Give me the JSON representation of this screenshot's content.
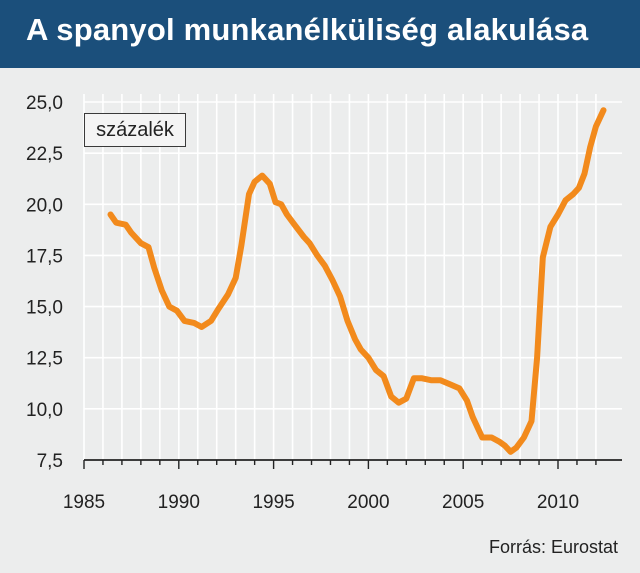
{
  "header": {
    "title": "A spanyol munkanélküliség alakulása"
  },
  "unit_label": "százalék",
  "source": "Forrás: Eurostat",
  "colors": {
    "header_bg": "#1b4f7b",
    "line": "#f28a1c",
    "background": "#eceded",
    "grid": "#ffffff"
  },
  "chart_data": {
    "type": "line",
    "title": "A spanyol munkanélküliség alakulása",
    "ylabel": "százalék",
    "xlim": [
      1985,
      2013
    ],
    "ylim": [
      7.5,
      25.0
    ],
    "x_ticks": [
      1985,
      1990,
      1995,
      2000,
      2005,
      2010
    ],
    "x_tick_labels": [
      "1985",
      "1990",
      "1995",
      "2000",
      "2005",
      "2010"
    ],
    "y_ticks": [
      7.5,
      10.0,
      12.5,
      15.0,
      17.5,
      20.0,
      22.5,
      25.0
    ],
    "y_tick_labels": [
      "7,5",
      "10,0",
      "12,5",
      "15,0",
      "17,5",
      "20,0",
      "22,5",
      "25,0"
    ],
    "grid": true,
    "series": [
      {
        "x": [
          1986.4,
          1986.7,
          1987.2,
          1987.5,
          1988.0,
          1988.4,
          1988.7,
          1989.1,
          1989.5,
          1989.9,
          1990.3,
          1990.8,
          1991.2,
          1991.7,
          1992.1,
          1992.6,
          1993.0,
          1993.3,
          1993.7,
          1994.0,
          1994.4,
          1994.8,
          1995.1,
          1995.4,
          1995.7,
          1996.1,
          1996.6,
          1996.9,
          1997.3,
          1997.7,
          1998.1,
          1998.5,
          1998.9,
          1999.3,
          1999.6,
          2000.0,
          2000.4,
          2000.8,
          2001.2,
          2001.6,
          2002.0,
          2002.4,
          2002.8,
          2003.3,
          2003.8,
          2004.3,
          2004.8,
          2005.2,
          2005.5,
          2006.0,
          2006.5,
          2006.9,
          2007.2,
          2007.5,
          2007.8,
          2008.2,
          2008.6,
          2008.9,
          2009.2,
          2009.6,
          2010.0,
          2010.4,
          2010.8,
          2011.1,
          2011.4,
          2011.7,
          2012.0,
          2012.4
        ],
        "values": [
          19.5,
          19.1,
          19.0,
          18.6,
          18.1,
          17.9,
          16.9,
          15.8,
          15.0,
          14.8,
          14.3,
          14.2,
          14.0,
          14.3,
          14.9,
          15.6,
          16.4,
          18.0,
          20.5,
          21.1,
          21.4,
          21.0,
          20.1,
          20.0,
          19.5,
          19.0,
          18.4,
          18.1,
          17.5,
          17.0,
          16.3,
          15.5,
          14.3,
          13.4,
          12.9,
          12.5,
          11.9,
          11.6,
          10.6,
          10.3,
          10.5,
          11.5,
          11.5,
          11.4,
          11.4,
          11.2,
          11.0,
          10.4,
          9.6,
          8.6,
          8.6,
          8.4,
          8.2,
          7.9,
          8.1,
          8.6,
          9.4,
          12.5,
          17.4,
          18.9,
          19.5,
          20.2,
          20.5,
          20.8,
          21.5,
          22.8,
          23.8,
          24.6
        ]
      }
    ]
  }
}
